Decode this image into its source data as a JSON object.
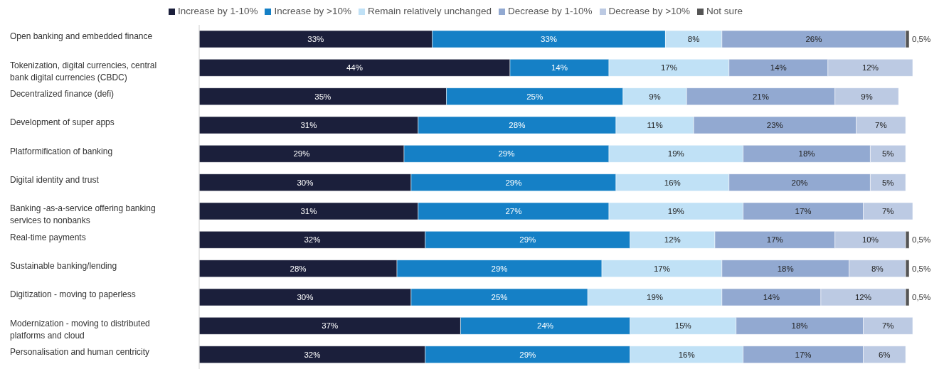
{
  "chart_data": {
    "type": "bar",
    "orientation": "horizontal",
    "stacked": true,
    "legend": "top",
    "categories": [
      "Open banking and embedded finance",
      "Tokenization, digital currencies, central bank digital currencies (CBDC)",
      "Decentralized finance (defi)",
      "Development of super apps",
      "Platformification of banking",
      "Digital identity and trust",
      "Banking -as-a-service offering banking services to nonbanks",
      "Real-time payments",
      "Sustainable banking/lending",
      "Digitization - moving to paperless",
      "Modernization - moving to distributed platforms and cloud",
      "Personalisation and human centricity"
    ],
    "series": [
      {
        "name": "Increase by 1-10%",
        "color": "#1b1f3b",
        "values": [
          33,
          44,
          35,
          31,
          29,
          30,
          31,
          32,
          28,
          30,
          37,
          32
        ],
        "value_labels": [
          "33%",
          "44%",
          "35%",
          "31%",
          "29%",
          "30%",
          "31%",
          "32%",
          "28%",
          "30%",
          "37%",
          "32%"
        ]
      },
      {
        "name": "Increase by >10%",
        "color": "#1580c6",
        "values": [
          33,
          14,
          25,
          28,
          29,
          29,
          27,
          29,
          29,
          25,
          24,
          29
        ],
        "value_labels": [
          "33%",
          "14%",
          "25%",
          "28%",
          "29%",
          "29%",
          "27%",
          "29%",
          "29%",
          "25%",
          "24%",
          "29%"
        ]
      },
      {
        "name": "Remain relatively unchanged",
        "color": "#c0e1f6",
        "values": [
          8,
          17,
          9,
          11,
          19,
          16,
          19,
          12,
          17,
          19,
          15,
          16
        ],
        "value_labels": [
          "8%",
          "17%",
          "9%",
          "11%",
          "19%",
          "16%",
          "19%",
          "12%",
          "17%",
          "19%",
          "15%",
          "16%"
        ]
      },
      {
        "name": "Decrease by 1-10%",
        "color": "#92a9d1",
        "values": [
          26,
          14,
          21,
          23,
          18,
          20,
          17,
          17,
          18,
          14,
          18,
          17
        ],
        "value_labels": [
          "26%",
          "14%",
          "21%",
          "23%",
          "18%",
          "20%",
          "17%",
          "17%",
          "18%",
          "14%",
          "18%",
          "17%"
        ]
      },
      {
        "name": "Decrease by >10%",
        "color": "#bccae3",
        "values": [
          null,
          12,
          9,
          7,
          5,
          5,
          7,
          10,
          8,
          12,
          7,
          6
        ],
        "value_labels": [
          null,
          "12%",
          "9%",
          "7%",
          "5%",
          "5%",
          "7%",
          "10%",
          "8%",
          "12%",
          "7%",
          "6%"
        ]
      },
      {
        "name": "Not sure",
        "color": "#555555",
        "values": [
          0.5,
          null,
          null,
          null,
          null,
          null,
          null,
          0.5,
          0.5,
          0.5,
          null,
          null
        ],
        "value_labels": [
          "0,5%",
          null,
          null,
          null,
          null,
          null,
          null,
          "0,5%",
          "0,5%",
          "0,5%",
          null,
          null
        ]
      }
    ]
  }
}
